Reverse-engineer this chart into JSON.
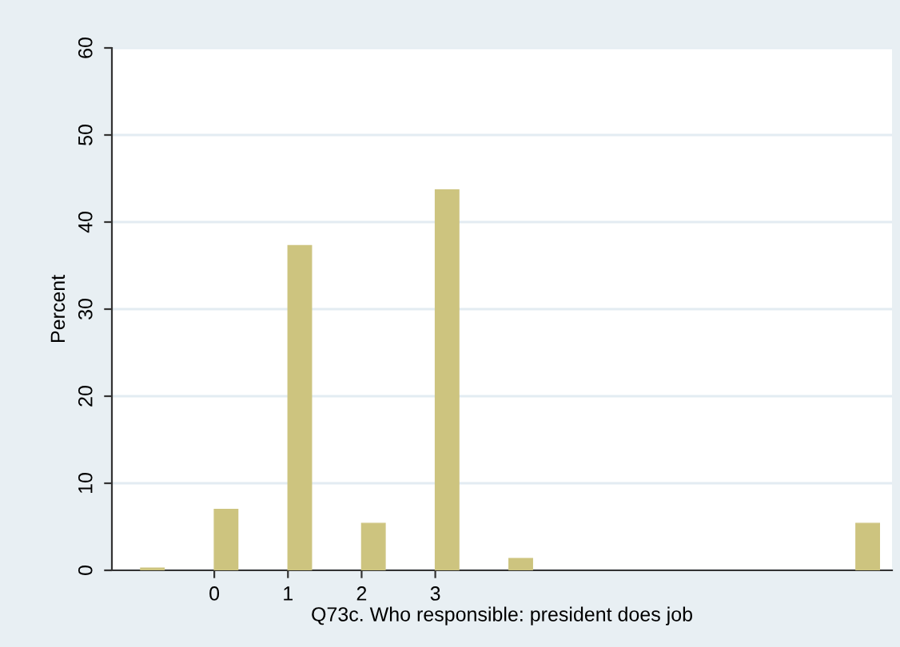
{
  "chart_data": {
    "type": "bar",
    "xlabel": "Q73c. Who responsible: president does job",
    "ylabel": "Percent",
    "x": [
      -0.84,
      0.16,
      1.16,
      2.16,
      3.16,
      4.16,
      8.87
    ],
    "series": [
      {
        "color": "#cdc47f",
        "values": [
          0.25,
          7.0,
          37.3,
          5.4,
          43.7,
          1.35,
          5.4
        ]
      }
    ],
    "xlim": [
      -1.39,
      9.2
    ],
    "xticks": [
      0,
      1,
      2,
      3
    ],
    "ylim": [
      0,
      60
    ],
    "yticks": [
      0,
      10,
      20,
      30,
      40,
      50,
      60
    ],
    "grid": "y",
    "legend": false
  }
}
